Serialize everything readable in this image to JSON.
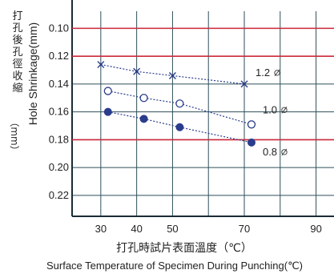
{
  "chart_data": {
    "type": "line",
    "xlabel_cn": "打孔時試片表面溫度（℃）",
    "xlabel_en": "Surface Temperature of Specimen During Punching(℃)",
    "ylabel_en": "Hole Shrinkage(mm)",
    "ylabel_cn_chars": [
      "打",
      "孔",
      "後",
      "孔",
      "徑",
      "收",
      "縮"
    ],
    "ylabel_unit_cn": "（mm）",
    "xlim": [
      22,
      95
    ],
    "ylim": [
      0.09,
      0.235
    ],
    "y_reversed": true,
    "x_ticks": [
      30,
      40,
      50,
      70,
      90
    ],
    "y_ticks": [
      0.1,
      0.12,
      0.14,
      0.16,
      0.18,
      0.2,
      0.22
    ],
    "x_tick_labels": [
      "30",
      "40",
      "50",
      "70",
      "90"
    ],
    "y_tick_labels": [
      "0.10",
      "0.12",
      "0.14",
      "0.16",
      "0.18",
      "0.20",
      "0.22"
    ],
    "grid": true,
    "series": [
      {
        "name": "1.2",
        "label": "1.2",
        "marker": "x",
        "line": "dotted",
        "color": "#2a3c8c",
        "x": [
          30,
          40,
          50,
          70
        ],
        "y": [
          0.126,
          0.131,
          0.134,
          0.14
        ]
      },
      {
        "name": "1.0",
        "label": "1.0",
        "marker": "open-circle",
        "line": "dotted",
        "color": "#2a3c8c",
        "x": [
          32,
          42,
          52,
          72
        ],
        "y": [
          0.145,
          0.15,
          0.154,
          0.169
        ]
      },
      {
        "name": "0.8",
        "label": "0.8",
        "marker": "filled-circle",
        "line": "dotted",
        "color": "#2a3c8c",
        "x": [
          32,
          42,
          52,
          72
        ],
        "y": [
          0.16,
          0.165,
          0.171,
          0.182
        ]
      }
    ],
    "highlight_lines": [
      {
        "axis": "y",
        "value": 0.1,
        "color": "#cc2b3b"
      },
      {
        "axis": "y",
        "value": 0.12,
        "color": "#cc2b3b"
      },
      {
        "axis": "y",
        "value": 0.18,
        "color": "#cc2b3b"
      }
    ],
    "colors": {
      "grid": "#2f4f5a",
      "axis": "#1a2c36",
      "highlight": "#cc2b3b",
      "series": "#2a3c8c"
    }
  }
}
